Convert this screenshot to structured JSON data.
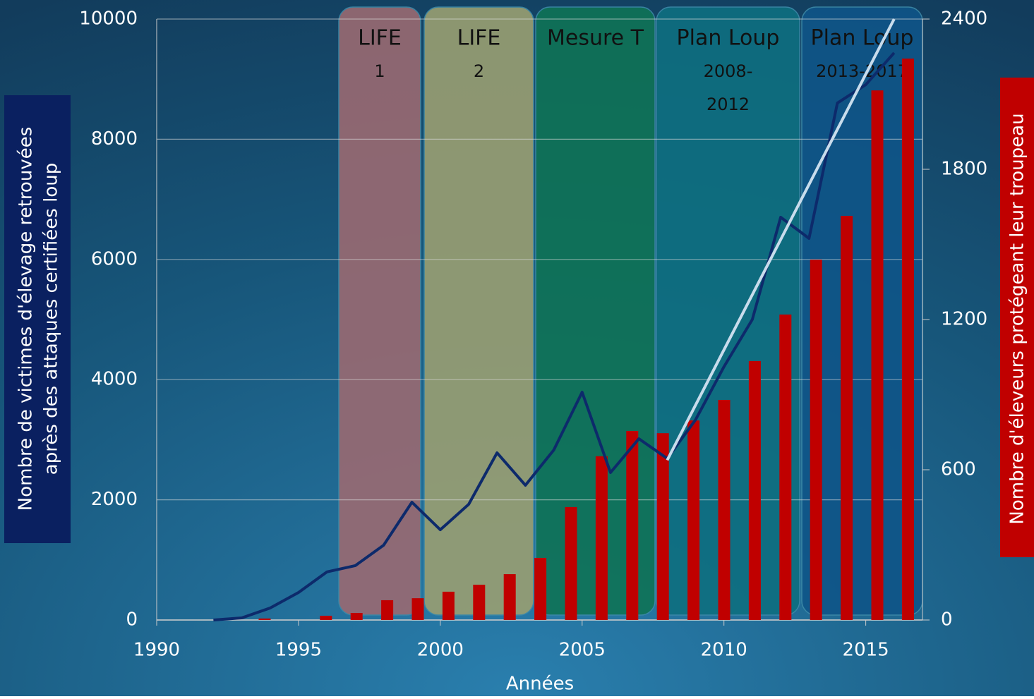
{
  "chart_data": {
    "type": "bar",
    "x_label": "Années",
    "y_label": [
      "Nombre de victimes d'élevage retrouvées",
      "après des attaques certifiées loup"
    ],
    "y2_label": "Nombre d'éleveurs protégeant leur troupeau",
    "xlim": [
      1990,
      2017
    ],
    "xticks": [
      1990,
      1995,
      2000,
      2005,
      2010,
      2015
    ],
    "ylim": [
      0,
      10000
    ],
    "yticks": [
      0,
      2000,
      4000,
      6000,
      8000,
      10000
    ],
    "y2lim": [
      0,
      2400
    ],
    "y2ticks": [
      0,
      600,
      1200,
      1800,
      2400
    ],
    "grid": true,
    "periods": [
      [
        "LIFE",
        "1"
      ],
      [
        "LIFE",
        "2"
      ],
      [
        "Mesure T"
      ],
      [
        "Plan Loup",
        "2008-",
        "2012"
      ],
      [
        "Plan Loup",
        "2013-2017"
      ]
    ],
    "series": [
      {
        "type": "bar",
        "axis": "y2",
        "color": "#c00000",
        "x": [
          1994,
          1996,
          1997,
          1998,
          1999,
          2000,
          2001,
          2002,
          2003,
          2004,
          2005,
          2006,
          2007,
          2008,
          2009,
          2010,
          2011,
          2012,
          2013,
          2014,
          2015
        ],
        "values": [
          6,
          17,
          28,
          79,
          87,
          113,
          141,
          183,
          248,
          451,
          654,
          755,
          746,
          797,
          879,
          1034,
          1220,
          1439,
          1614,
          2115,
          2242
        ]
      },
      {
        "type": "line",
        "color": "#0d2a6b",
        "x": [
          1992,
          1993,
          1994,
          1995,
          1996,
          1997,
          1998,
          1999,
          2000,
          2001,
          2002,
          2003,
          2004,
          2005,
          2006,
          2007,
          2008,
          2009,
          2010,
          2011,
          2012,
          2013,
          2014,
          2015,
          2016
        ],
        "values": [
          0,
          35,
          200,
          458,
          800,
          904,
          1244,
          1960,
          1502,
          1925,
          2782,
          2242,
          2829,
          3791,
          2453,
          3016,
          2688,
          3333,
          4214,
          5000,
          6702,
          6350,
          8603,
          8908,
          9437
        ]
      },
      {
        "type": "line",
        "color": "#c8dcec",
        "x": [
          2008,
          2016
        ],
        "values": [
          2660,
          10000
        ]
      }
    ]
  }
}
